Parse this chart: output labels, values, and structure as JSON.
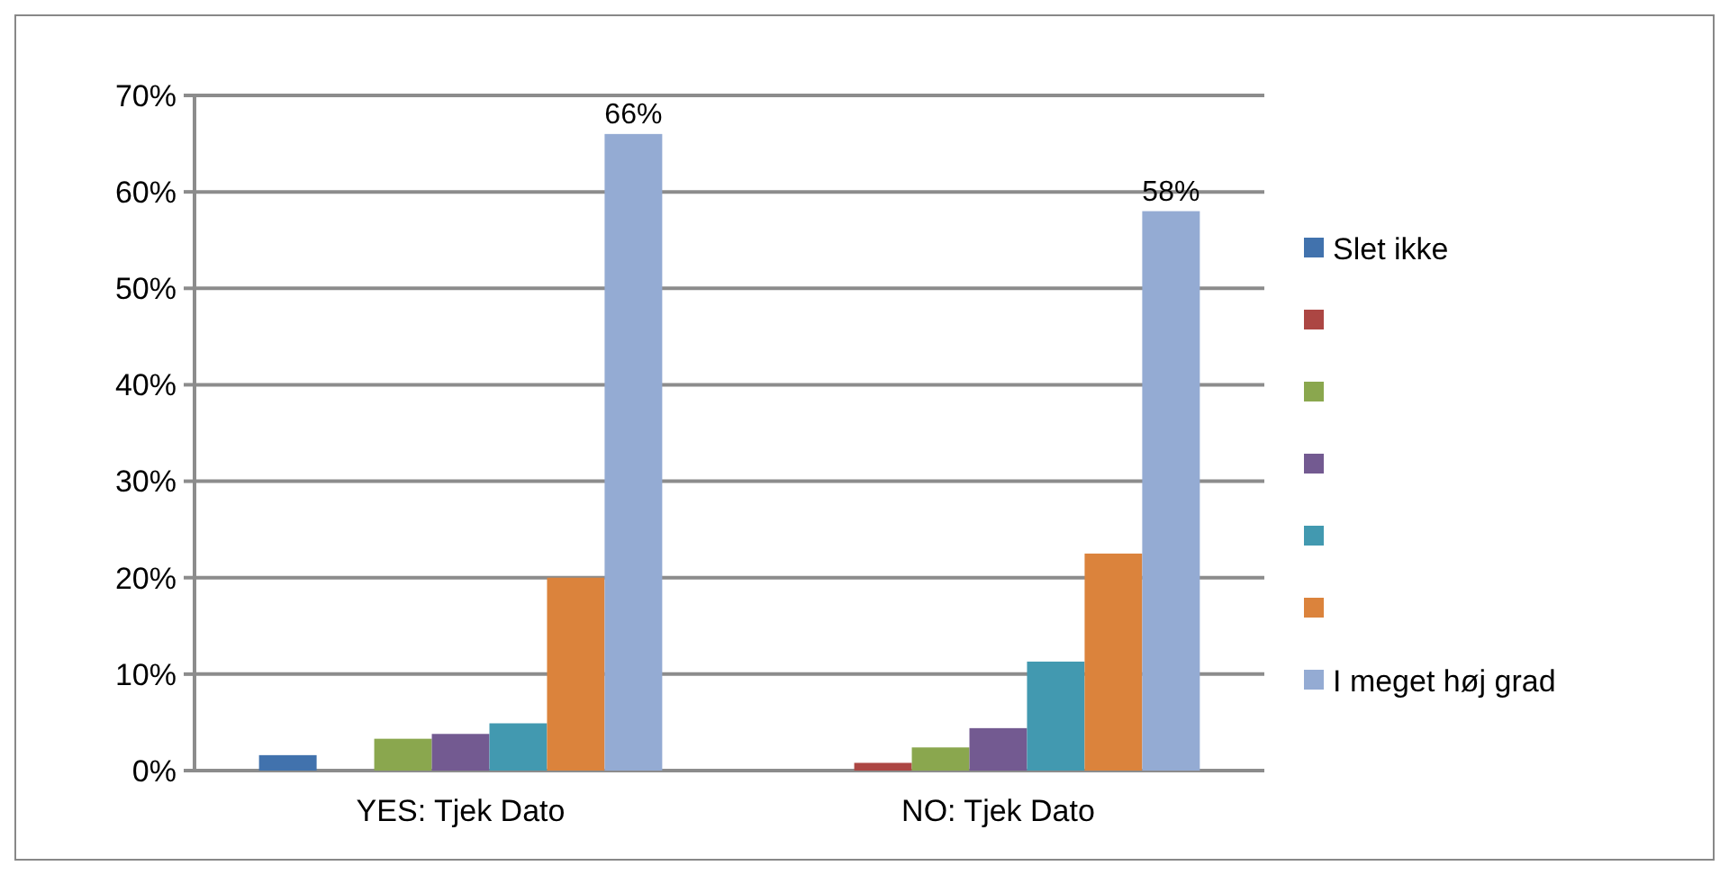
{
  "chart_data": {
    "type": "bar",
    "categories": [
      "YES: Tjek Dato",
      "NO: Tjek Dato"
    ],
    "ylim": [
      0,
      70
    ],
    "yticks": [
      {
        "value": 0,
        "label": "0%"
      },
      {
        "value": 10,
        "label": "10%"
      },
      {
        "value": 20,
        "label": "20%"
      },
      {
        "value": 30,
        "label": "30%"
      },
      {
        "value": 40,
        "label": "40%"
      },
      {
        "value": 50,
        "label": "50%"
      },
      {
        "value": 60,
        "label": "60%"
      },
      {
        "value": 70,
        "label": "70%"
      }
    ],
    "grid": "y",
    "legend": "right",
    "series": [
      {
        "name": "Slet ikke",
        "color": "#4172ad",
        "values": [
          1.6,
          0
        ]
      },
      {
        "color": "#ac4643",
        "values": [
          0,
          0.8
        ]
      },
      {
        "color": "#8aa74e",
        "values": [
          3.3,
          2.4
        ]
      },
      {
        "color": "#735a91",
        "values": [
          3.8,
          4.4
        ]
      },
      {
        "color": "#4299b0",
        "values": [
          4.9,
          11.3
        ]
      },
      {
        "color": "#db833c",
        "values": [
          20,
          22.5
        ]
      },
      {
        "name": "I meget høj grad",
        "color": "#94abd3",
        "values": [
          66,
          58
        ],
        "value_labels": [
          "66%",
          "58%"
        ]
      }
    ]
  }
}
